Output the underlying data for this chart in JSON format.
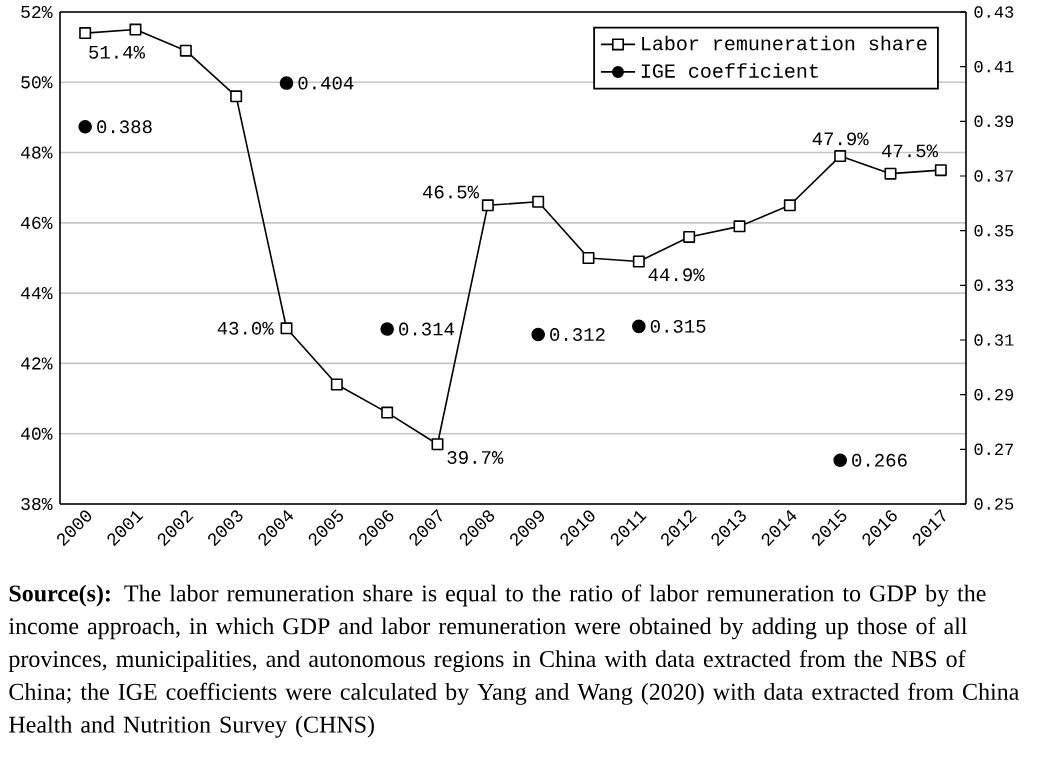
{
  "chart_data": {
    "type": "line",
    "categories": [
      "2000",
      "2001",
      "2002",
      "2003",
      "2004",
      "2005",
      "2006",
      "2007",
      "2008",
      "2009",
      "2010",
      "2011",
      "2012",
      "2013",
      "2014",
      "2015",
      "2016",
      "2017"
    ],
    "series": [
      {
        "name": "Labor remuneration share",
        "color": "#000000",
        "marker": "square",
        "line_style": "solid",
        "values": [
          51.4,
          51.5,
          50.9,
          49.6,
          43.0,
          41.4,
          40.6,
          39.7,
          46.5,
          46.6,
          45.0,
          44.9,
          45.6,
          45.9,
          46.5,
          47.9,
          47.4,
          47.5
        ],
        "value_labels": [
          "51.4%",
          null,
          null,
          null,
          "43.0%",
          null,
          null,
          "39.7%",
          "46.5%",
          null,
          null,
          "44.9%",
          null,
          null,
          null,
          "47.9%",
          null,
          "47.5%"
        ]
      },
      {
        "name": "IGE coefficient",
        "type": "scatter",
        "axis": "y2",
        "color": "#000000",
        "marker": "circle",
        "values": [
          0.388,
          null,
          null,
          null,
          0.404,
          null,
          0.314,
          null,
          null,
          0.312,
          null,
          0.315,
          null,
          null,
          null,
          0.266,
          null,
          null
        ],
        "value_labels": [
          "0.388",
          null,
          null,
          null,
          "0.404",
          null,
          "0.314",
          null,
          null,
          "0.312",
          null,
          "0.315",
          null,
          null,
          null,
          "0.266",
          null,
          null
        ]
      }
    ],
    "ylim": [
      38,
      52
    ],
    "yticks": [
      {
        "value": 38,
        "label": "38%"
      },
      {
        "value": 40,
        "label": "40%"
      },
      {
        "value": 42,
        "label": "42%"
      },
      {
        "value": 44,
        "label": "44%"
      },
      {
        "value": 46,
        "label": "46%"
      },
      {
        "value": 48,
        "label": "48%"
      },
      {
        "value": 50,
        "label": "50%"
      },
      {
        "value": 52,
        "label": "52%"
      }
    ],
    "y2lim": [
      0.25,
      0.43
    ],
    "y2ticks": [
      0.25,
      0.27,
      0.29,
      0.31,
      0.33,
      0.35,
      0.37,
      0.39,
      0.41,
      0.43
    ],
    "grid": "y",
    "legend": "top right",
    "annotations": [
      "**Source(s):** The labor remuneration share is equal to the ratio of labor remuneration to GDP by the income approach, in which GDP and labor remuneration were obtained by adding up those of all provinces, municipalities, and autonomous regions in China with data extracted from the NBS of China; the IGE coefficients were calculated by Yang and Wang (2020) with data extracted from China Health and Nutrition Survey (CHNS)"
    ]
  }
}
